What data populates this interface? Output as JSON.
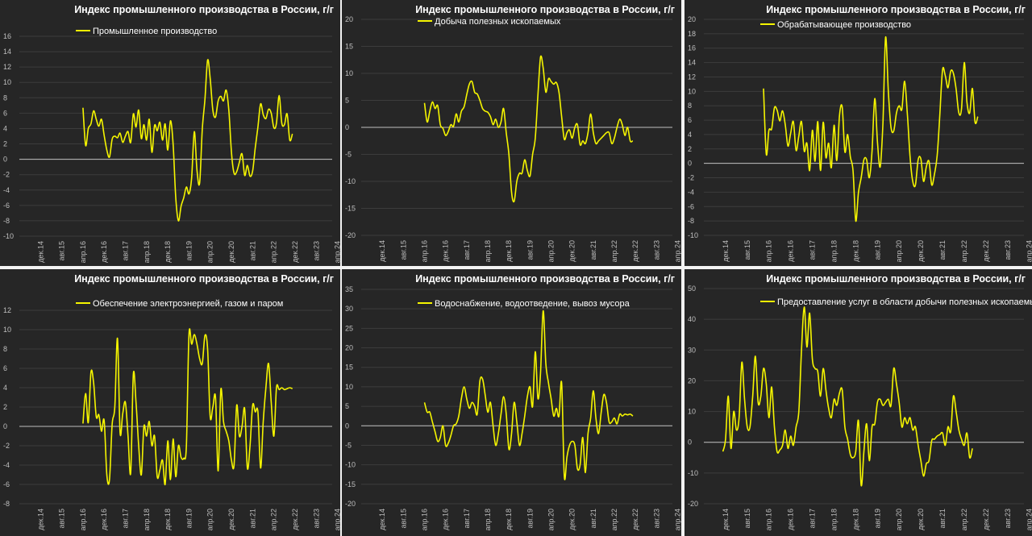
{
  "style": {
    "background": "#262626",
    "grid": "#3c3c3c",
    "zero_line": "#bfbfbf",
    "series_color": "#f5f500",
    "text": "#ffffff",
    "ticks": "#bfbfbf"
  },
  "chart_data": [
    {
      "type": "line",
      "title": "Индекс промышленного производства в России, г/г",
      "ylim": [
        -10,
        16
      ],
      "ystep": 2,
      "yticks": [
        "16",
        "14",
        "12",
        "10",
        "8",
        "6",
        "4",
        "2",
        "0",
        "-2",
        "-4",
        "-6",
        "-8",
        "-10"
      ],
      "xticks": [
        "дек.14",
        "авг.15",
        "апр.16",
        "дек.16",
        "авг.17",
        "апр.18",
        "дек.18",
        "авг.19",
        "апр.20",
        "дек.20",
        "авг.21",
        "апр.22",
        "дек.22",
        "авг.23",
        "апр.24"
      ],
      "grid": true,
      "legend": "top-left",
      "series": [
        {
          "name": "Промышленное производство",
          "x_start": 24,
          "values": [
            6.7,
            1.8,
            4.0,
            4.6,
            6.3,
            5.2,
            4.3,
            5.2,
            3.1,
            1.2,
            0.3,
            2.6,
            3.0,
            2.8,
            3.4,
            2.2,
            3.0,
            3.6,
            2.2,
            5.9,
            4.2,
            6.4,
            2.7,
            4.5,
            2.5,
            5.2,
            0.9,
            4.4,
            3.7,
            4.8,
            2.5,
            4.6,
            1.2,
            5.0,
            2.0,
            -5.0,
            -8.0,
            -6.1,
            -5.0,
            -3.6,
            -4.5,
            -2.4,
            3.6,
            -1.4,
            -3.1,
            3.9,
            7.8,
            12.9,
            10.5,
            6.4,
            5.5,
            7.6,
            8.2,
            7.6,
            9.0,
            6.4,
            0.9,
            -1.8,
            -1.6,
            -0.4,
            0.7,
            -2.1,
            -0.8,
            -2.2,
            -1.5,
            1.5,
            4.2,
            7.2,
            5.8,
            5.3,
            6.5,
            6.0,
            4.1,
            4.7,
            8.3,
            4.7,
            4.5,
            5.9,
            2.5,
            3.3
          ]
        }
      ]
    },
    {
      "type": "line",
      "title": "Индекс промышленного производства в России, г/г",
      "ylim": [
        -20,
        20
      ],
      "ystep": 5,
      "yticks": [
        "20",
        "15",
        "10",
        "5",
        "0",
        "-5",
        "-10",
        "-15",
        "-20"
      ],
      "xticks": [
        "дек.14",
        "авг.15",
        "апр.16",
        "дек.16",
        "авг.17",
        "апр.18",
        "дек.18",
        "авг.19",
        "апр.20",
        "дек.20",
        "авг.21",
        "апр.22",
        "дек.22",
        "авг.23",
        "апр.24"
      ],
      "grid": true,
      "legend": "top-left",
      "series": [
        {
          "name": "Добыча полезных ископаемых",
          "x_start": 24,
          "values": [
            4.5,
            1.0,
            3.0,
            4.7,
            3.5,
            4.0,
            0.5,
            -0.2,
            -1.5,
            -0.8,
            0.5,
            0.2,
            2.5,
            1.0,
            3.0,
            3.8,
            6.0,
            8.0,
            8.5,
            6.5,
            6.2,
            5.0,
            3.5,
            3.0,
            2.8,
            2.0,
            0.5,
            1.5,
            0.0,
            1.0,
            3.5,
            -1.0,
            -5.0,
            -12.0,
            -13.7,
            -10.0,
            -8.5,
            -8.5,
            -6.0,
            -8.0,
            -9.0,
            -5.0,
            -2.0,
            6.0,
            13.0,
            11.0,
            6.5,
            9.0,
            8.5,
            8.0,
            8.3,
            6.5,
            2.0,
            -2.2,
            -1.0,
            -0.5,
            -2.0,
            0.0,
            0.5,
            -3.2,
            -2.5,
            -3.0,
            -1.0,
            2.5,
            -1.0,
            -3.0,
            -2.5,
            -2.0,
            -1.5,
            -1.0,
            -1.0,
            -3.0,
            -2.0,
            0.0,
            1.5,
            0.5,
            -1.5,
            0.0,
            -2.5,
            -2.5
          ]
        }
      ]
    },
    {
      "type": "line",
      "title": "Индекс промышленного производства в России, г/г",
      "ylim": [
        -10,
        20
      ],
      "ystep": 2,
      "yticks": [
        "20",
        "18",
        "16",
        "14",
        "12",
        "10",
        "8",
        "6",
        "4",
        "2",
        "0",
        "-2",
        "-4",
        "-6",
        "-8",
        "-10"
      ],
      "xticks": [
        "дек.14",
        "авг.15",
        "апр.16",
        "дек.16",
        "авг.17",
        "апр.18",
        "дек.18",
        "авг.19",
        "апр.20",
        "дек.20",
        "авг.21",
        "апр.22",
        "дек.22",
        "авг.23",
        "апр.24"
      ],
      "grid": true,
      "legend": "top-left",
      "series": [
        {
          "name": "Обрабатывающее производство",
          "x_start": 22,
          "values": [
            10.4,
            1.3,
            4.6,
            4.8,
            7.7,
            7.4,
            5.9,
            7.3,
            5.4,
            2.4,
            4.2,
            5.8,
            1.8,
            3.8,
            5.8,
            1.7,
            2.8,
            -1.0,
            4.6,
            0.3,
            5.8,
            -1.0,
            5.7,
            0.8,
            2.8,
            -0.6,
            5.3,
            0.4,
            6.6,
            7.8,
            1.6,
            4.0,
            0.9,
            -1.0,
            -8.0,
            -4.0,
            -2.0,
            0.5,
            0.5,
            -2.0,
            1.7,
            9.0,
            3.0,
            -0.5,
            5.5,
            17.5,
            10.0,
            5.0,
            4.5,
            7.0,
            8.0,
            7.5,
            11.4,
            7.0,
            1.0,
            -2.5,
            -3.0,
            0.5,
            0.6,
            -2.5,
            -0.5,
            0.3,
            -3.0,
            -1.5,
            1.0,
            6.8,
            13.0,
            12.2,
            10.5,
            12.8,
            12.5,
            10.3,
            7.0,
            7.6,
            14.0,
            8.5,
            7.0,
            10.4,
            5.7,
            6.5
          ]
        }
      ]
    },
    {
      "type": "line",
      "title": "Индекс промышленного производства в России, г/г",
      "ylim": [
        -8,
        12
      ],
      "ystep": 2,
      "yticks": [
        "12",
        "10",
        "8",
        "6",
        "4",
        "2",
        "0",
        "-2",
        "-4",
        "-6",
        "-8"
      ],
      "xticks": [
        "дек.14",
        "авг.15",
        "апр.16",
        "дек.16",
        "авг.17",
        "апр.18",
        "дек.18",
        "авг.19",
        "апр.20",
        "дек.20",
        "авг.21",
        "апр.22",
        "дек.22",
        "авг.23",
        "апр.24"
      ],
      "grid": true,
      "legend": "top-left",
      "series": [
        {
          "name": "Обеспечение электроэнергией, газом и паром",
          "x_start": 24,
          "values": [
            0.3,
            3.4,
            0.4,
            5.6,
            4.5,
            1.0,
            1.2,
            -0.5,
            0.6,
            -5.0,
            -5.5,
            0.2,
            2.0,
            9.1,
            -0.6,
            1.3,
            2.5,
            -1.0,
            -4.8,
            5.4,
            2.5,
            -2.0,
            -5.0,
            0.0,
            -1.0,
            0.5,
            -2.0,
            -1.0,
            -5.2,
            -4.5,
            -3.5,
            -6.0,
            -1.5,
            -5.5,
            -1.3,
            -5.2,
            -2.0,
            -3.2,
            -3.3,
            -2.0,
            9.5,
            8.5,
            9.5,
            8.5,
            7.0,
            6.5,
            9.4,
            8.0,
            1.0,
            2.0,
            3.0,
            -4.6,
            3.8,
            0.5,
            -0.5,
            -1.5,
            -3.5,
            -4.0,
            2.2,
            -1.0,
            0.0,
            1.8,
            -4.3,
            -2.0,
            2.2,
            1.5,
            1.5,
            -4.3,
            0.5,
            4.0,
            6.5,
            2.5,
            -1.0,
            4.0,
            3.8,
            4.0,
            3.8,
            3.9,
            4.0,
            3.9
          ]
        }
      ]
    },
    {
      "type": "line",
      "title": "Индекс промышленного производства в России, г/г",
      "ylim": [
        -20,
        35
      ],
      "ystep": 5,
      "yticks": [
        "35",
        "30",
        "25",
        "20",
        "15",
        "10",
        "5",
        "0",
        "-5",
        "-10",
        "-15",
        "-20"
      ],
      "xticks": [
        "дек.14",
        "авг.15",
        "апр.16",
        "дек.16",
        "авг.17",
        "апр.18",
        "дек.18",
        "авг.19",
        "апр.20",
        "дек.20",
        "авг.21",
        "апр.22",
        "дек.22",
        "авг.23",
        "апр.24"
      ],
      "grid": true,
      "legend": "top-left",
      "series": [
        {
          "name": "Водоснабжение, водоотведение, вывоз мусора",
          "x_start": 24,
          "values": [
            6.0,
            3.5,
            3.5,
            1.0,
            -1.5,
            -4.0,
            -3.0,
            0.0,
            -5.0,
            -4.5,
            -2.5,
            0.0,
            0.5,
            2.5,
            7.0,
            10.0,
            7.0,
            4.5,
            6.0,
            5.0,
            3.0,
            11.5,
            12.0,
            8.0,
            3.5,
            6.0,
            0.0,
            -5.0,
            -2.0,
            3.0,
            7.5,
            3.0,
            -6.0,
            -2.0,
            6.0,
            1.0,
            -5.0,
            -2.0,
            2.5,
            7.5,
            10.0,
            5.0,
            19.0,
            7.0,
            13.5,
            29.5,
            16.0,
            11.0,
            7.0,
            2.5,
            4.5,
            2.5,
            11.0,
            -13.0,
            -8.0,
            -5.0,
            -4.0,
            -5.0,
            -11.0,
            -10.0,
            -3.0,
            -12.0,
            -2.0,
            2.0,
            9.0,
            2.0,
            -2.0,
            3.5,
            8.0,
            6.0,
            1.0,
            1.0,
            2.0,
            0.5,
            3.0,
            2.5,
            3.0,
            2.8,
            3.0,
            2.5
          ]
        }
      ]
    },
    {
      "type": "line",
      "title": "Индекс промышленного производства в России, г/г",
      "ylim": [
        -20,
        50
      ],
      "ystep": 10,
      "yticks": [
        "50",
        "40",
        "30",
        "20",
        "10",
        "0",
        "-10",
        "-20"
      ],
      "xticks": [
        "дек.14",
        "авг.15",
        "апр.16",
        "дек.16",
        "авг.17",
        "апр.18",
        "дек.18",
        "авг.19",
        "апр.20",
        "дек.20",
        "авг.21",
        "апр.22",
        "дек.22",
        "авг.23",
        "апр.24"
      ],
      "grid": true,
      "legend": "top-left",
      "series": [
        {
          "name": "Предоставление услуг в области добычи полезных ископаемых",
          "x_start": 7,
          "values": [
            -3.0,
            1.0,
            15.0,
            -2.0,
            10.0,
            4.0,
            8.0,
            26.0,
            14.0,
            5.0,
            5.0,
            15.0,
            28.0,
            13.0,
            15.0,
            24.0,
            19.0,
            8.0,
            18.0,
            5.0,
            -3.0,
            -2.5,
            -1.0,
            4.0,
            -2.0,
            2.0,
            -1.0,
            5.0,
            10.0,
            30.0,
            44.0,
            31.0,
            42.0,
            27.0,
            24.0,
            23.0,
            15.0,
            24.0,
            17.0,
            11.0,
            8.0,
            14.0,
            12.0,
            16.0,
            17.0,
            5.0,
            1.0,
            -4.0,
            -5.0,
            -3.0,
            7.0,
            -14.0,
            -3.0,
            6.0,
            -6.0,
            5.0,
            6.0,
            13.0,
            14.0,
            12.0,
            13.0,
            14.0,
            12.0,
            24.0,
            19.0,
            13.0,
            5.0,
            8.0,
            6.0,
            8.0,
            4.0,
            5.0,
            -1.0,
            -6.0,
            -11.0,
            -7.0,
            -6.0,
            0.5,
            1.0,
            2.0,
            2.5,
            3.0,
            -1.0,
            5.0,
            3.5,
            15.0,
            10.0,
            4.0,
            1.0,
            -1.0,
            3.0,
            -5.0,
            -2.0
          ]
        }
      ]
    }
  ]
}
